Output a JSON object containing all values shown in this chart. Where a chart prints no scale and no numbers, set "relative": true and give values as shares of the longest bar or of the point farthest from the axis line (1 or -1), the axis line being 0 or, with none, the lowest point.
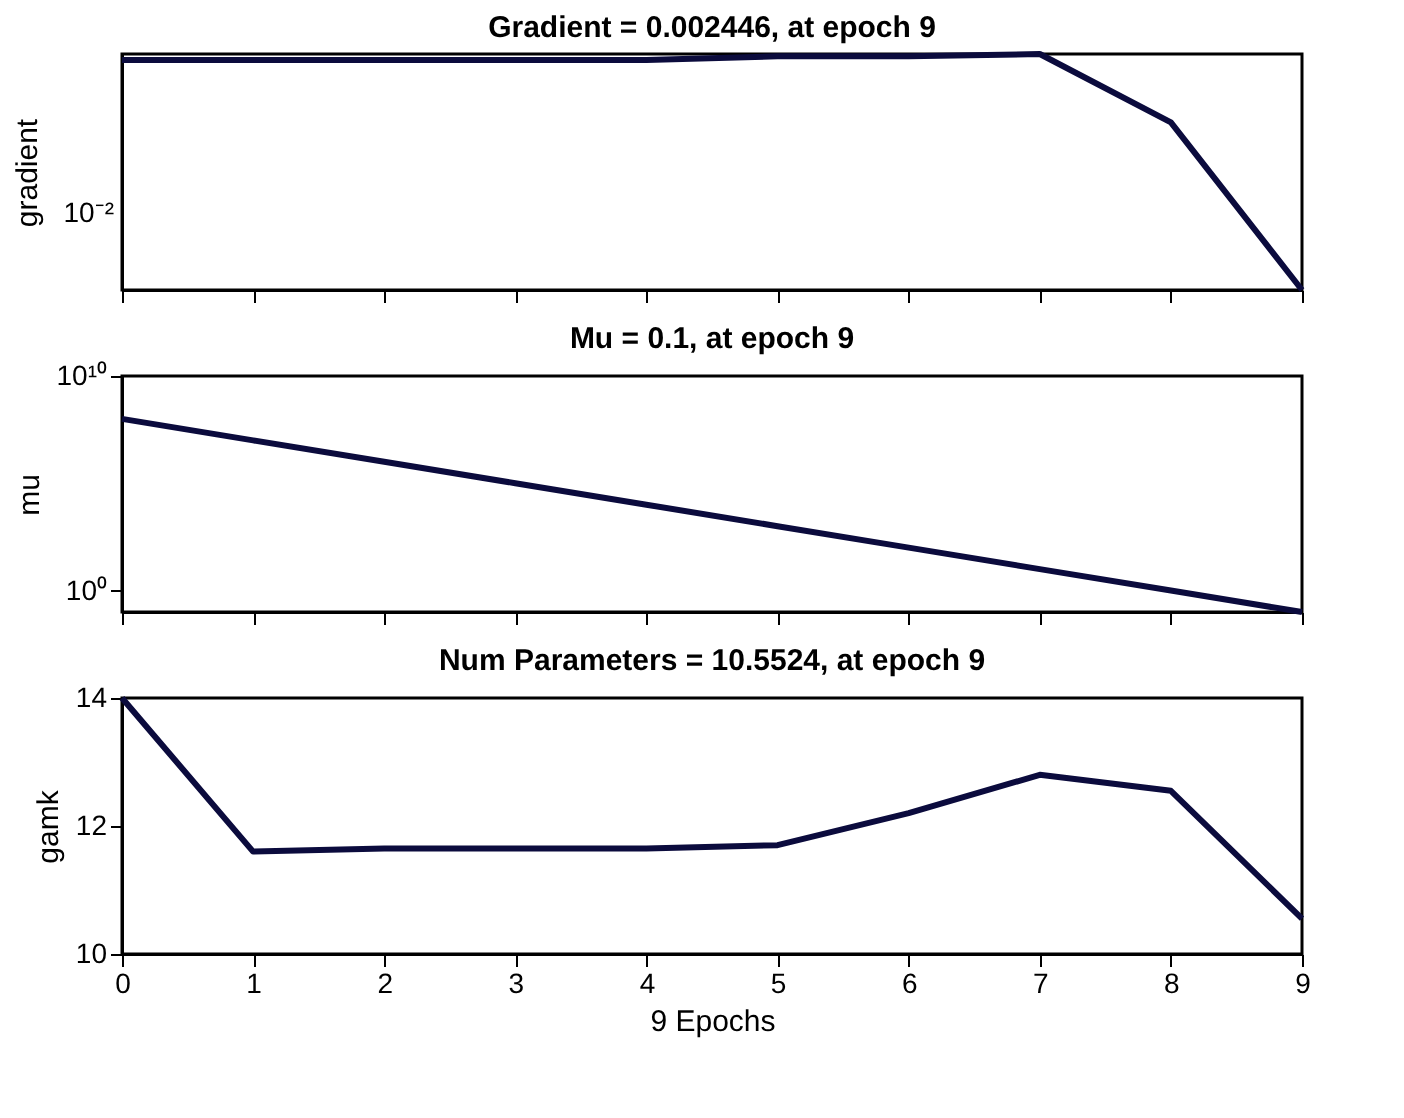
{
  "chart_data": [
    {
      "type": "line",
      "title": "Gradient = 0.002446, at epoch 9",
      "ylabel": "gradient",
      "x": [
        0,
        1,
        2,
        3,
        4,
        5,
        6,
        7,
        8,
        9
      ],
      "series": [
        {
          "color": "#0b0b3d",
          "values": [
            0.975,
            0.975,
            0.975,
            0.975,
            0.975,
            0.99,
            0.99,
            1,
            0.71,
            0
          ]
        }
      ],
      "xlim": [
        0,
        9
      ],
      "xticks": [
        {
          "value": 0,
          "label": null
        },
        {
          "value": 1,
          "label": null
        },
        {
          "value": 2,
          "label": null
        },
        {
          "value": 3,
          "label": null
        },
        {
          "value": 4,
          "label": null
        },
        {
          "value": 5,
          "label": null
        },
        {
          "value": 6,
          "label": null
        },
        {
          "value": 7,
          "label": null
        },
        {
          "value": 8,
          "label": null
        },
        {
          "value": 9,
          "label": null
        }
      ],
      "relative": true,
      "annotations": [
        "10⁻²"
      ],
      "grid": false,
      "tick_labels": false
    },
    {
      "type": "line",
      "title": "Mu = 0.1, at epoch 9",
      "ylabel": "mu",
      "x": [
        0,
        1,
        2,
        3,
        4,
        5,
        6,
        7,
        8,
        9
      ],
      "series": [
        {
          "color": "#0b0b3d",
          "values": [
            100000000,
            10000000,
            1000000,
            100000,
            10000,
            1000,
            100,
            10,
            1,
            0.1
          ]
        }
      ],
      "xlim": [
        0,
        9
      ],
      "xticks": [
        {
          "value": 0,
          "label": null
        },
        {
          "value": 1,
          "label": null
        },
        {
          "value": 2,
          "label": null
        },
        {
          "value": 3,
          "label": null
        },
        {
          "value": 4,
          "label": null
        },
        {
          "value": 5,
          "label": null
        },
        {
          "value": 6,
          "label": null
        },
        {
          "value": 7,
          "label": null
        },
        {
          "value": 8,
          "label": null
        },
        {
          "value": 9,
          "label": null
        }
      ],
      "ylim": [
        0.1,
        10000000000
      ],
      "yticks": [
        {
          "value": 1,
          "label": "10⁰"
        },
        {
          "value": 10000000000,
          "label": "10¹⁰"
        }
      ],
      "log": "y",
      "grid": false,
      "tick_labels": "y"
    },
    {
      "type": "line",
      "title": "Num Parameters = 10.5524, at epoch 9",
      "ylabel": "gamk",
      "xlabel": "9 Epochs",
      "x": [
        0,
        1,
        2,
        3,
        4,
        5,
        6,
        7,
        8,
        9
      ],
      "series": [
        {
          "color": "#0b0b3d",
          "values": [
            14,
            11.6,
            11.65,
            11.65,
            11.65,
            11.7,
            12.2,
            12.8,
            12.55,
            10.5524
          ]
        }
      ],
      "xlim": [
        0,
        9
      ],
      "xticks": [
        0,
        1,
        2,
        3,
        4,
        5,
        6,
        7,
        8,
        9
      ],
      "ylim": [
        10,
        14
      ],
      "yticks": [
        10,
        12,
        14
      ],
      "grid": false
    }
  ]
}
